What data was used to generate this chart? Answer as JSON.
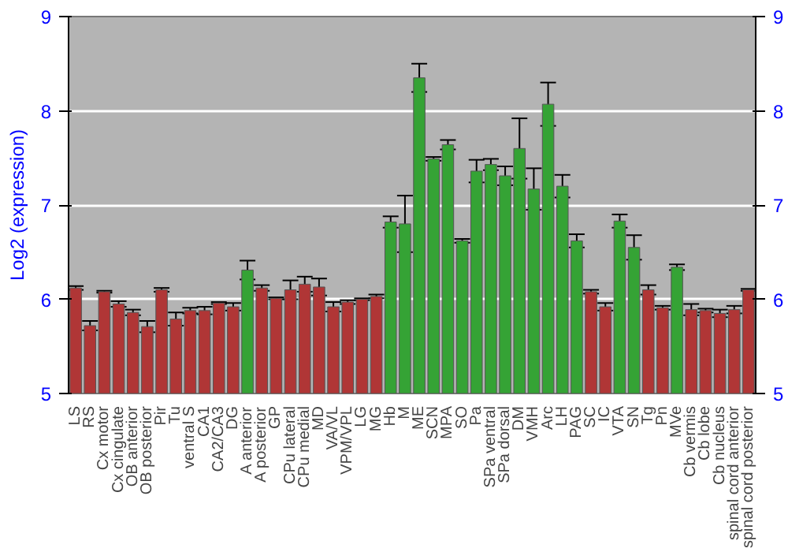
{
  "chart_data": {
    "type": "bar",
    "ylabel": "Log2 (expression)",
    "categories": [
      "LS",
      "RS",
      "Cx motor",
      "Cx cingulate",
      "OB anterior",
      "OB posterior",
      "Pir",
      "Tu",
      "ventral S",
      "CA1",
      "CA2/CA3",
      "DG",
      "A anterior",
      "A posterior",
      "GP",
      "CPu lateral",
      "CPu medial",
      "MD",
      "VA/VL",
      "VPM/VPL",
      "LG",
      "MG",
      "Hb",
      "M",
      "ME",
      "SCN",
      "MPA",
      "SO",
      "Pa",
      "SPa ventral",
      "SPa dorsal",
      "DM",
      "VMH",
      "Arc",
      "LH",
      "PAG",
      "SC",
      "IC",
      "VTA",
      "SN",
      "Tg",
      "Pn",
      "MVe",
      "Cb vermis",
      "Cb lobe",
      "Cb nucleus",
      "spinal cord anterior",
      "spinal cord posterior"
    ],
    "values": [
      6.12,
      5.72,
      6.08,
      5.95,
      5.86,
      5.71,
      6.1,
      5.79,
      5.88,
      5.88,
      5.96,
      5.92,
      6.31,
      6.12,
      6.01,
      6.1,
      6.16,
      6.13,
      5.92,
      5.97,
      6.0,
      6.03,
      6.82,
      6.8,
      8.35,
      7.49,
      7.64,
      6.62,
      7.36,
      7.43,
      7.31,
      7.6,
      7.17,
      8.07,
      7.2,
      6.62,
      6.08,
      5.92,
      6.83,
      6.55,
      6.1,
      5.91,
      6.34,
      5.89,
      5.88,
      5.85,
      5.89,
      6.1
    ],
    "errors": [
      0.02,
      0.05,
      0.01,
      0.03,
      0.03,
      0.06,
      0.02,
      0.07,
      0.03,
      0.04,
      0.01,
      0.04,
      0.1,
      0.03,
      0.01,
      0.1,
      0.08,
      0.09,
      0.05,
      0.02,
      0.01,
      0.02,
      0.06,
      0.3,
      0.15,
      0.02,
      0.05,
      0.02,
      0.12,
      0.06,
      0.1,
      0.32,
      0.22,
      0.23,
      0.12,
      0.07,
      0.02,
      0.04,
      0.07,
      0.13,
      0.05,
      0.02,
      0.03,
      0.06,
      0.02,
      0.04,
      0.04,
      0.01
    ],
    "colors": [
      "#b03636",
      "#b03636",
      "#b03636",
      "#b03636",
      "#b03636",
      "#b03636",
      "#b03636",
      "#b03636",
      "#b03636",
      "#b03636",
      "#b03636",
      "#b03636",
      "#35a335",
      "#b03636",
      "#b03636",
      "#b03636",
      "#b03636",
      "#b03636",
      "#b03636",
      "#b03636",
      "#b03636",
      "#b03636",
      "#35a335",
      "#35a335",
      "#35a335",
      "#35a335",
      "#35a335",
      "#35a335",
      "#35a335",
      "#35a335",
      "#35a335",
      "#35a335",
      "#35a335",
      "#35a335",
      "#35a335",
      "#35a335",
      "#b03636",
      "#b03636",
      "#35a335",
      "#35a335",
      "#b03636",
      "#b03636",
      "#35a335",
      "#b03636",
      "#b03636",
      "#b03636",
      "#b03636",
      "#b03636"
    ],
    "ylim": [
      5,
      9
    ],
    "yticks": [
      5,
      6,
      7,
      8,
      9
    ],
    "y2lim": [
      5,
      9
    ],
    "y2ticks": [
      5,
      6,
      7,
      8,
      9
    ],
    "grid": "y"
  }
}
